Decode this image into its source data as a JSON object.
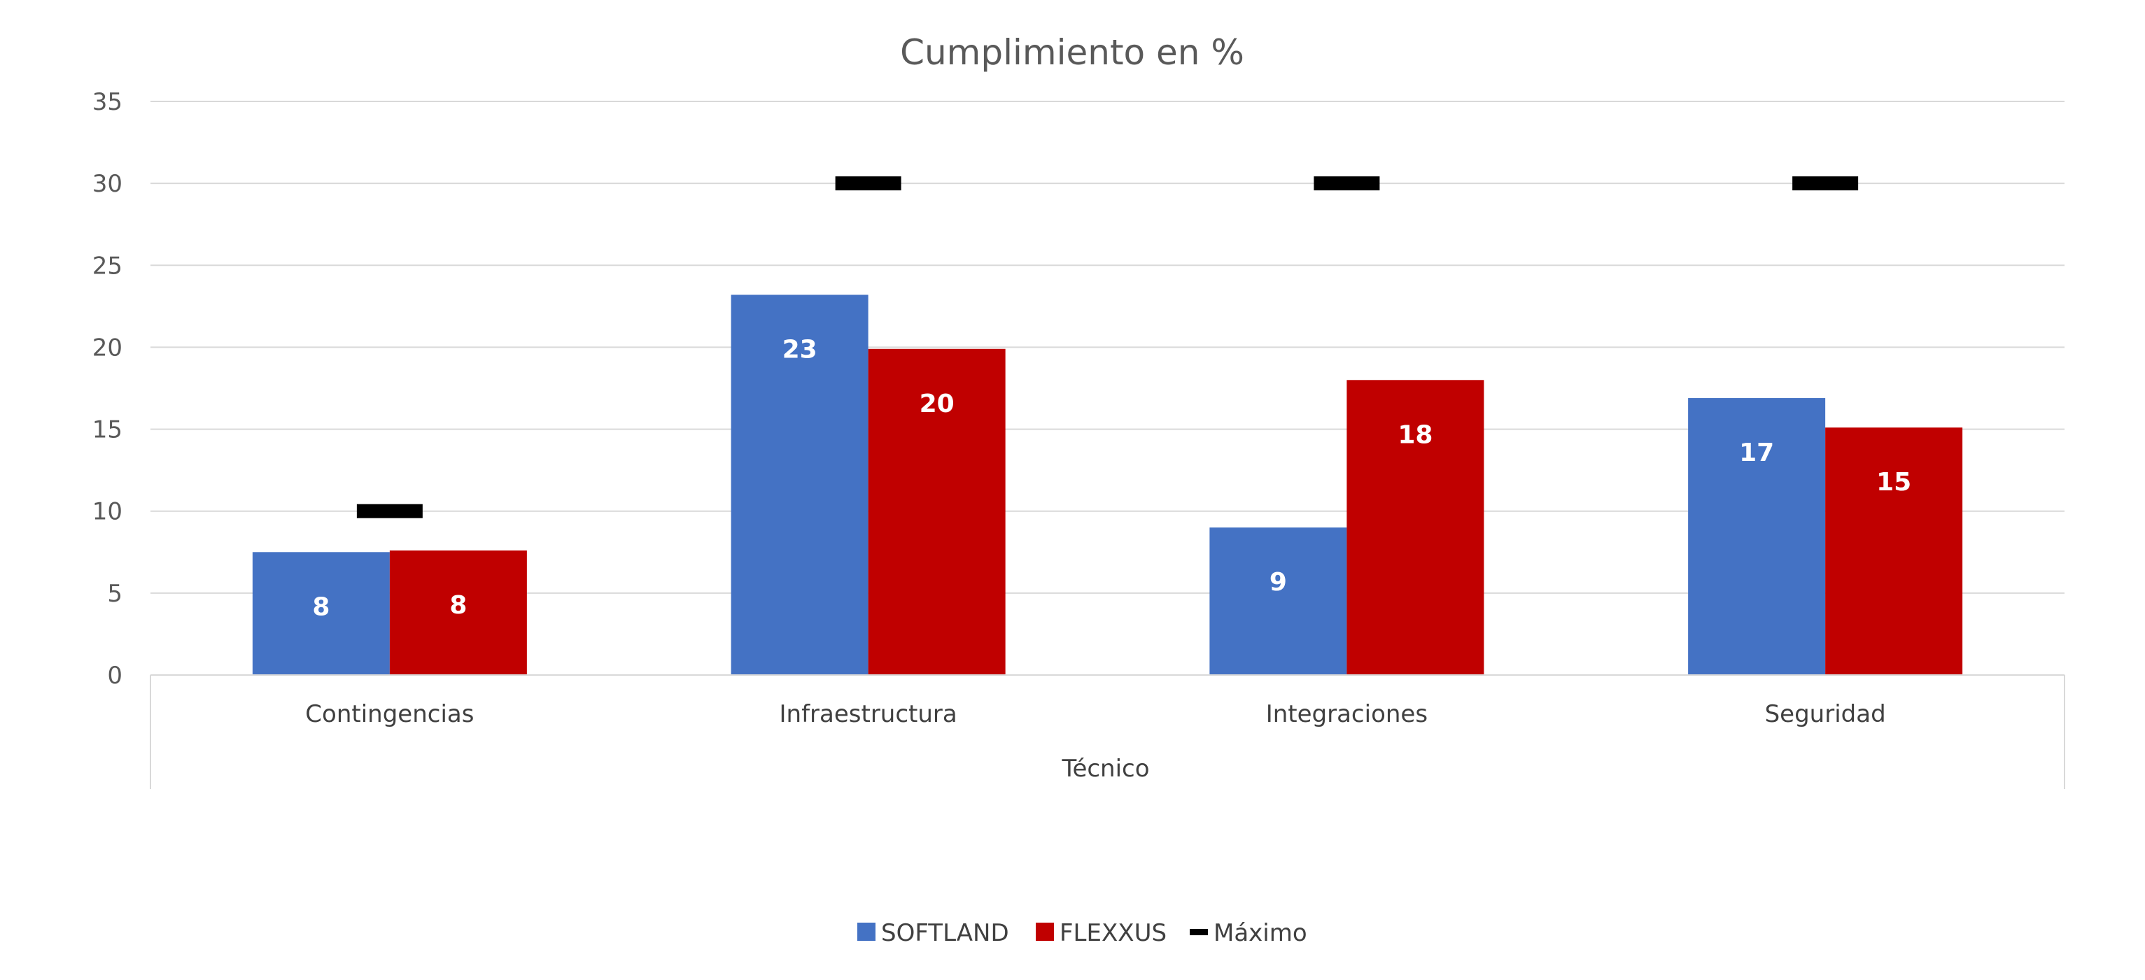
{
  "chart_data": {
    "type": "bar",
    "title": "Cumplimiento en %",
    "group_label": "Técnico",
    "categories": [
      "Contingencias",
      "Infraestructura",
      "Integraciones",
      "Seguridad"
    ],
    "series": [
      {
        "name": "SOFTLAND",
        "color": "#4472C4",
        "values": [
          7.5,
          23.2,
          9,
          16.9
        ],
        "labels": [
          "8",
          "23",
          "9",
          "17"
        ]
      },
      {
        "name": "FLEXXUS",
        "color": "#C00000",
        "values": [
          7.6,
          19.9,
          18,
          15.1
        ],
        "labels": [
          "8",
          "20",
          "18",
          "15"
        ]
      }
    ],
    "marker_series": {
      "name": "Máximo",
      "color": "#000000",
      "values": [
        10,
        30,
        30,
        30
      ]
    },
    "ylim": [
      0,
      35
    ],
    "yticks": [
      0,
      5,
      10,
      15,
      20,
      25,
      30,
      35
    ],
    "grid": true,
    "legend_position": "bottom"
  }
}
